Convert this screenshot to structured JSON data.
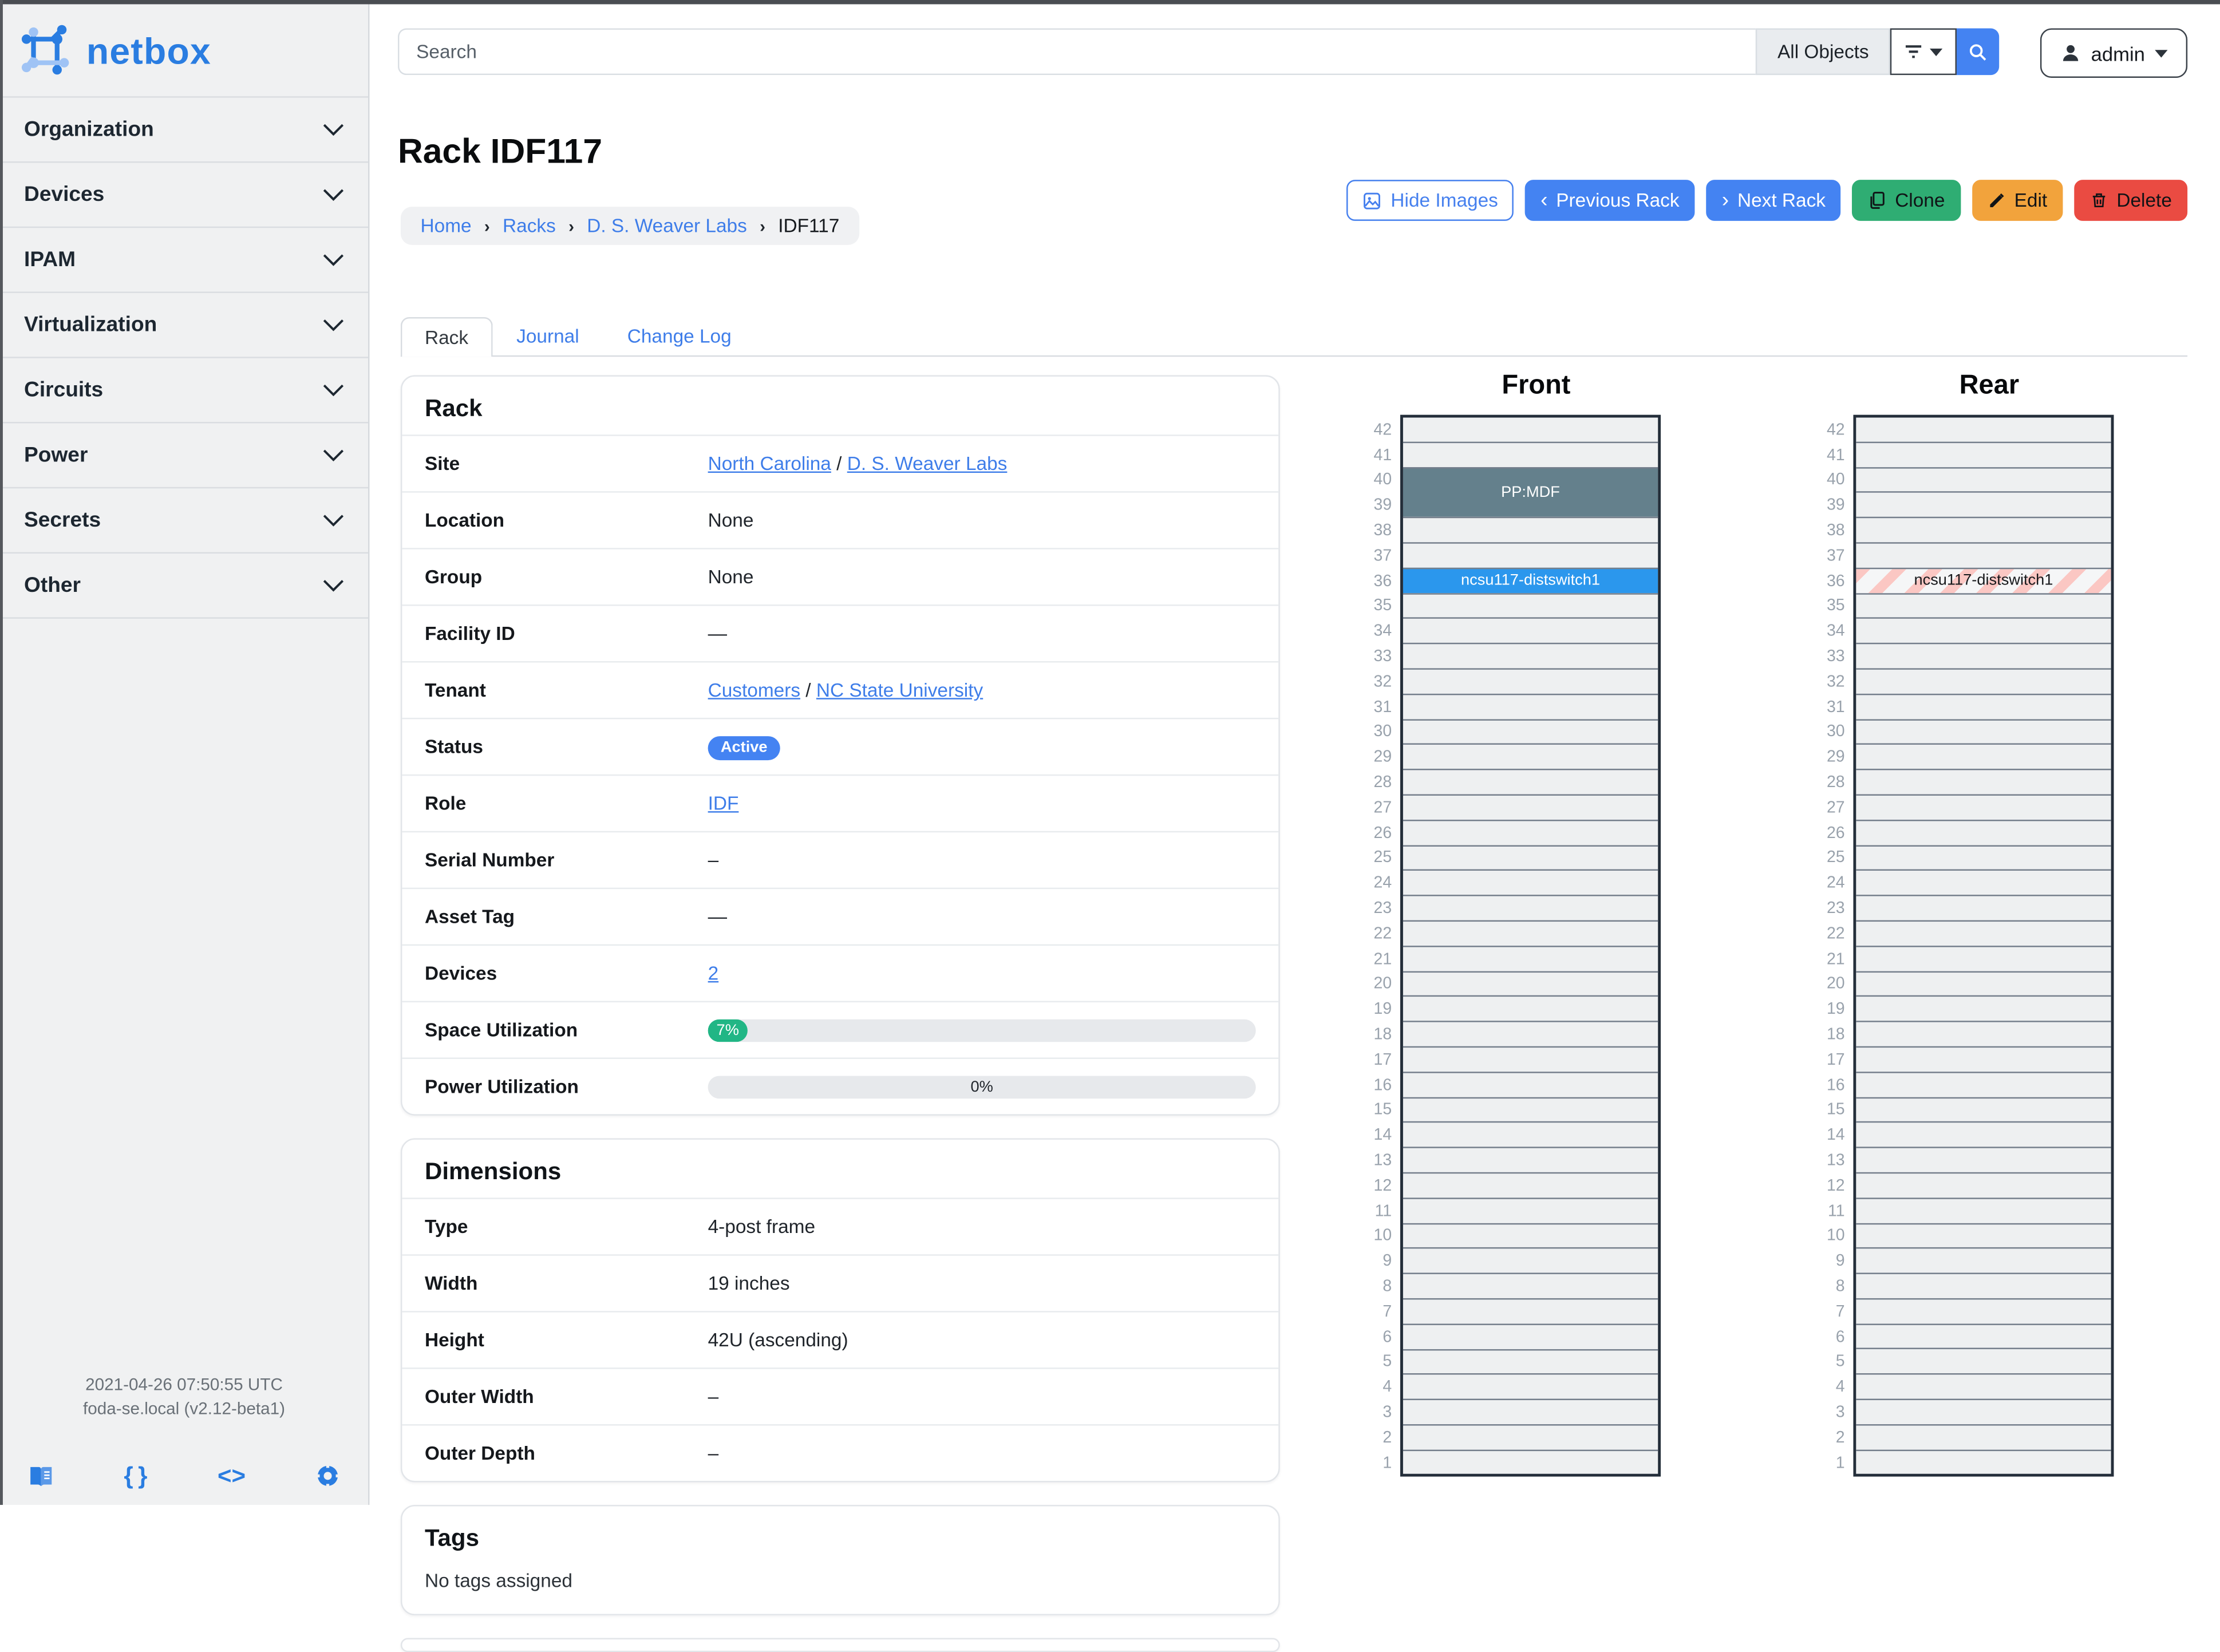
{
  "app": {
    "brand": "netbox"
  },
  "sidebar": {
    "items": [
      {
        "label": "Organization"
      },
      {
        "label": "Devices"
      },
      {
        "label": "IPAM"
      },
      {
        "label": "Virtualization"
      },
      {
        "label": "Circuits"
      },
      {
        "label": "Power"
      },
      {
        "label": "Secrets"
      },
      {
        "label": "Other"
      }
    ],
    "footer": {
      "line1": "2021-04-26 07:50:55 UTC",
      "line2": "foda-se.local (v2.12-beta1)",
      "icons": [
        "docs-book-icon",
        "api-braces-icon",
        "code-icon",
        "help-lifebuoy-icon"
      ]
    }
  },
  "topbar": {
    "search_placeholder": "Search",
    "scope": "All Objects",
    "user": "admin"
  },
  "header": {
    "title": "Rack IDF117",
    "breadcrumb": [
      {
        "label": "Home",
        "link": true
      },
      {
        "label": "Racks",
        "link": true
      },
      {
        "label": "D. S. Weaver Labs",
        "link": true
      },
      {
        "label": "IDF117",
        "link": false
      }
    ],
    "actions": [
      {
        "id": "hide-images",
        "label": "Hide Images",
        "style": "outline-primary",
        "icon": "image-icon"
      },
      {
        "id": "previous-rack",
        "label": "Previous Rack",
        "style": "primary",
        "icon": "chevron-left-icon"
      },
      {
        "id": "next-rack",
        "label": "Next Rack",
        "style": "primary",
        "icon": "chevron-right-icon"
      },
      {
        "id": "clone",
        "label": "Clone",
        "style": "success",
        "icon": "copy-icon"
      },
      {
        "id": "edit",
        "label": "Edit",
        "style": "warning",
        "icon": "pencil-icon"
      },
      {
        "id": "delete",
        "label": "Delete",
        "style": "danger",
        "icon": "trash-icon"
      }
    ],
    "tabs": [
      {
        "label": "Rack",
        "active": true
      },
      {
        "label": "Journal",
        "active": false
      },
      {
        "label": "Change Log",
        "active": false
      }
    ]
  },
  "rack_panel": {
    "title": "Rack",
    "rows": [
      {
        "label": "Site",
        "type": "links",
        "parts": [
          {
            "text": "North Carolina",
            "link": true
          },
          {
            "text": " / ",
            "link": false
          },
          {
            "text": "D. S. Weaver Labs",
            "link": true
          }
        ]
      },
      {
        "label": "Location",
        "type": "muted",
        "text": "None"
      },
      {
        "label": "Group",
        "type": "muted",
        "text": "None"
      },
      {
        "label": "Facility ID",
        "type": "text",
        "text": "—"
      },
      {
        "label": "Tenant",
        "type": "links",
        "parts": [
          {
            "text": "Customers",
            "link": true
          },
          {
            "text": " / ",
            "link": false
          },
          {
            "text": "NC State University",
            "link": true
          }
        ]
      },
      {
        "label": "Status",
        "type": "badge",
        "text": "Active"
      },
      {
        "label": "Role",
        "type": "links",
        "parts": [
          {
            "text": "IDF",
            "link": true
          }
        ]
      },
      {
        "label": "Serial Number",
        "type": "text",
        "text": "–"
      },
      {
        "label": "Asset Tag",
        "type": "text",
        "text": "—"
      },
      {
        "label": "Devices",
        "type": "links",
        "parts": [
          {
            "text": "2",
            "link": true
          }
        ]
      },
      {
        "label": "Space Utilization",
        "type": "progress",
        "percent": 7,
        "text": "7%",
        "fill": "#21b685"
      },
      {
        "label": "Power Utilization",
        "type": "progress",
        "percent": 0,
        "text": "0%",
        "fill": "#21b685"
      }
    ]
  },
  "dimensions_panel": {
    "title": "Dimensions",
    "rows": [
      {
        "label": "Type",
        "type": "text",
        "text": "4-post frame"
      },
      {
        "label": "Width",
        "type": "text",
        "text": "19 inches"
      },
      {
        "label": "Height",
        "type": "text",
        "text": "42U (ascending)"
      },
      {
        "label": "Outer Width",
        "type": "text",
        "text": "–"
      },
      {
        "label": "Outer Depth",
        "type": "text",
        "text": "–"
      }
    ]
  },
  "tags_panel": {
    "title": "Tags",
    "body_text": "No tags assigned"
  },
  "elevations": {
    "unit_min": 1,
    "unit_max": 42,
    "front": {
      "title": "Front",
      "devices": [
        {
          "name": "PP:MDF",
          "top_unit": 40,
          "u_height": 2,
          "bg": "#64808c",
          "fg": "#ffffff",
          "striped": false
        },
        {
          "name": "ncsu117-distswitch1",
          "top_unit": 36,
          "u_height": 1,
          "bg": "#2b97ed",
          "fg": "#ffffff",
          "striped": false
        }
      ]
    },
    "rear": {
      "title": "Rear",
      "devices": [
        {
          "name": "ncsu117-distswitch1",
          "top_unit": 36,
          "u_height": 1,
          "bg": "",
          "fg": "#16181b",
          "striped": true
        }
      ]
    }
  },
  "colors": {
    "primary_blue": "#4483f2",
    "link_blue": "#3e7de9",
    "success_green": "#2fad73",
    "warning_orange": "#f2a33c",
    "danger_red": "#ea4b42",
    "utilization_green": "#21b685",
    "device_slate": "#64808c",
    "device_blue": "#2b97ed"
  }
}
